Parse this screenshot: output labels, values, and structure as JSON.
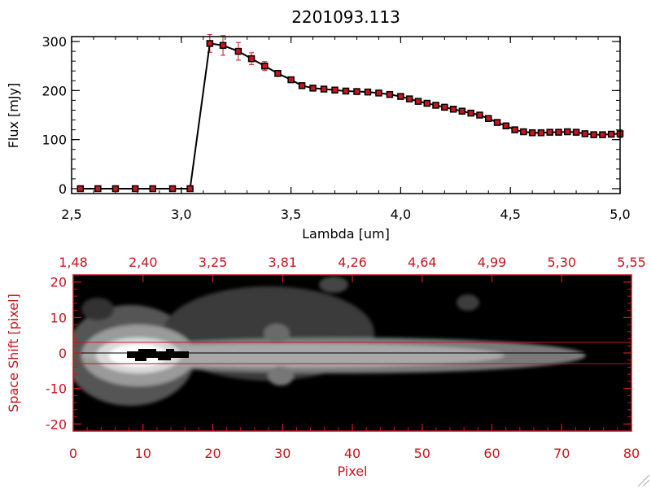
{
  "title": "2201093.113",
  "chart_data": [
    {
      "type": "line",
      "xlabel": "Lambda [um]",
      "ylabel": "Flux [mJy]",
      "xlim": [
        2.5,
        5.0
      ],
      "ylim": [
        -10,
        310
      ],
      "xticks": [
        "2.5",
        "3.0",
        "3.5",
        "4.0",
        "4.5",
        "5.0"
      ],
      "yticks": [
        "0",
        "100",
        "200",
        "300"
      ],
      "line_color": "#000000",
      "marker_color": "#c8141e",
      "errorbar_color": "#c8141e",
      "x": [
        2.54,
        2.62,
        2.7,
        2.79,
        2.87,
        2.96,
        3.04,
        3.13,
        3.19,
        3.26,
        3.32,
        3.38,
        3.44,
        3.5,
        3.55,
        3.6,
        3.65,
        3.7,
        3.75,
        3.8,
        3.85,
        3.9,
        3.95,
        4.0,
        4.04,
        4.08,
        4.12,
        4.16,
        4.2,
        4.24,
        4.28,
        4.32,
        4.36,
        4.4,
        4.44,
        4.48,
        4.52,
        4.56,
        4.6,
        4.64,
        4.68,
        4.72,
        4.76,
        4.8,
        4.84,
        4.88,
        4.92,
        4.96,
        5.0
      ],
      "y": [
        0,
        0,
        0,
        0,
        0,
        0,
        0,
        296,
        292,
        280,
        265,
        250,
        235,
        222,
        210,
        205,
        203,
        201,
        199,
        198,
        197,
        195,
        192,
        188,
        183,
        178,
        174,
        170,
        166,
        162,
        158,
        154,
        150,
        143,
        135,
        128,
        120,
        116,
        114,
        114,
        115,
        115,
        116,
        115,
        112,
        110,
        110,
        111,
        112
      ],
      "yerr": [
        0,
        0,
        0,
        0,
        0,
        0,
        0,
        18,
        20,
        18,
        12,
        9,
        6,
        4,
        3,
        3,
        3,
        3,
        3,
        3,
        3,
        3,
        3,
        3,
        3,
        3,
        3,
        3,
        3,
        3,
        3,
        3,
        3,
        3,
        3,
        3,
        3,
        3,
        3,
        3,
        3,
        3,
        3,
        3,
        3,
        3,
        3,
        3,
        8
      ]
    },
    {
      "type": "heatmap",
      "colormap": "grayscale",
      "xlabel": "Pixel",
      "ylabel": "Space Shift [pixel]",
      "xlim": [
        0,
        80
      ],
      "ylim": [
        -22,
        22
      ],
      "xticks": [
        "0",
        "10",
        "20",
        "30",
        "40",
        "50",
        "60",
        "70",
        "80"
      ],
      "yticks": [
        "-20",
        "-10",
        "0",
        "10",
        "20"
      ],
      "top_axis_ticks": [
        "1.48",
        "2.40",
        "3.25",
        "3.81",
        "4.26",
        "4.64",
        "4.99",
        "5.30",
        "5.55"
      ],
      "extraction_window": [
        -3,
        3
      ],
      "center_line": 0,
      "axis_color": "#c8141e",
      "window_color": "#c8141e"
    }
  ]
}
